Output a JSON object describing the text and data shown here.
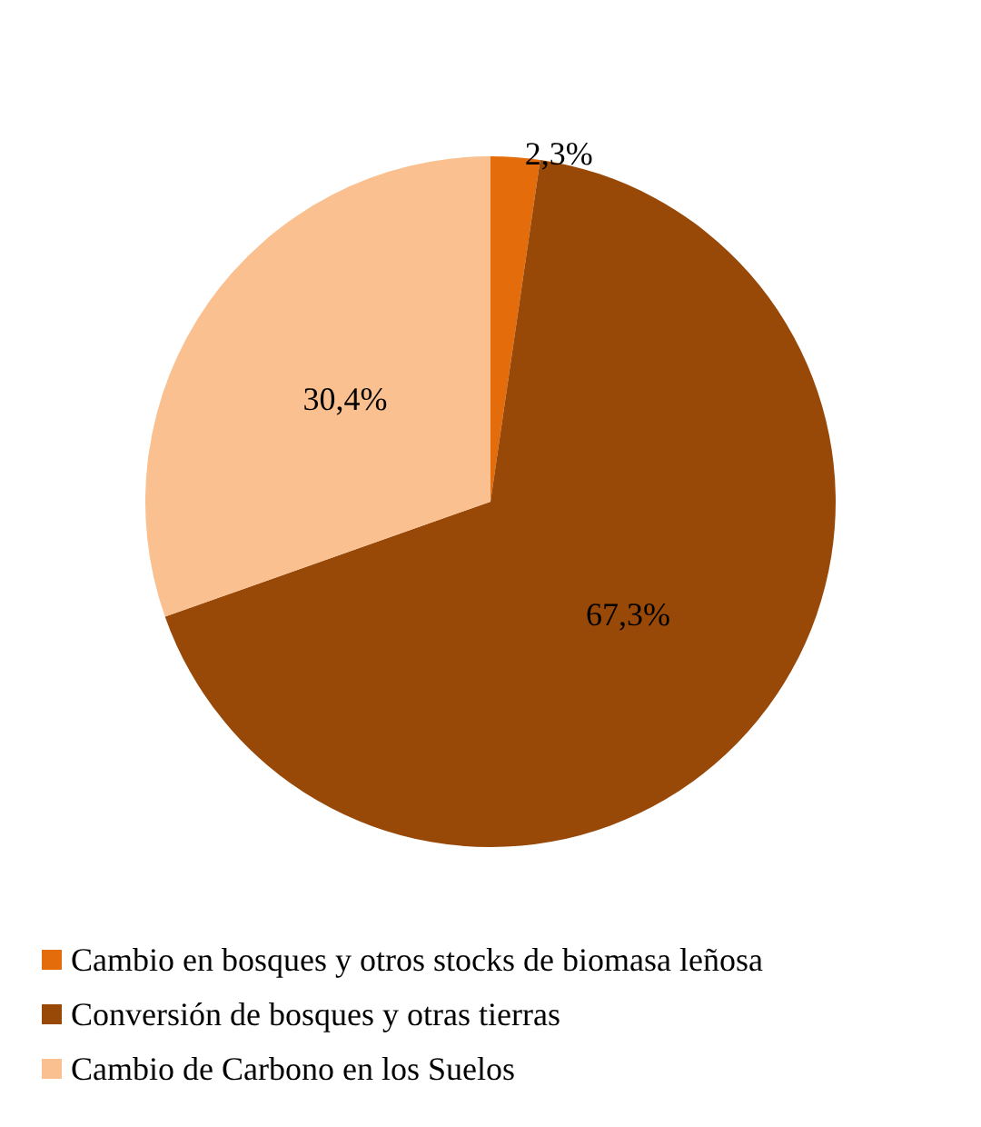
{
  "chart_data": {
    "type": "pie",
    "categories": [
      "Cambio en bosques y otros stocks de biomasa leñosa",
      "Conversión de bosques y otras tierras",
      "Cambio de Carbono en los Suelos"
    ],
    "values": [
      2.3,
      67.3,
      30.4
    ],
    "colors": [
      "#e46c0a",
      "#984807",
      "#fac090"
    ],
    "value_labels": [
      "2,3%",
      "67,3%",
      "30,4%"
    ],
    "legend": "bottom"
  }
}
